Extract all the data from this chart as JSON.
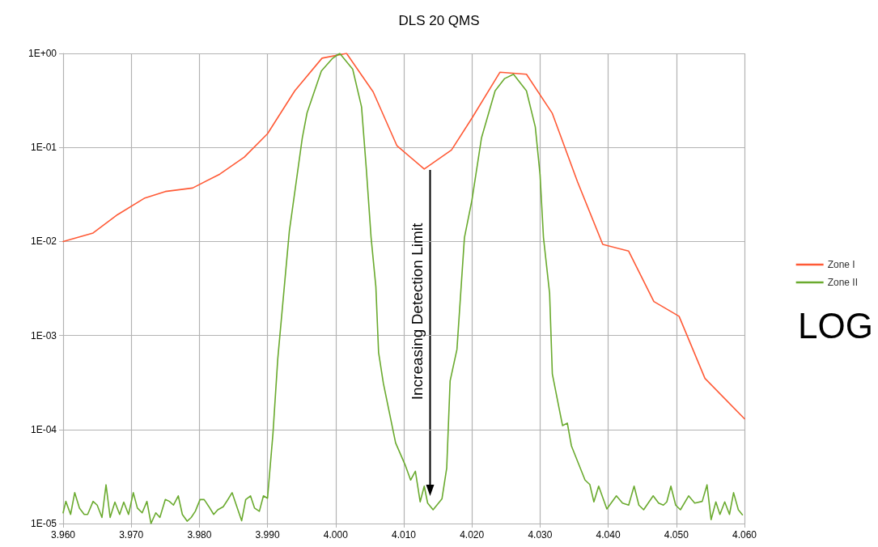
{
  "chart_data": {
    "type": "line",
    "title": "DLS 20 QMS",
    "annotations": [
      "Increasing Detection Limit",
      "LOG"
    ],
    "log": "y",
    "grid": true,
    "legend": "right",
    "marker": "none",
    "line_style": "solid",
    "xlim": [
      3.96,
      4.06
    ],
    "xticks": [
      {
        "value": 3.96,
        "label": "3.960"
      },
      {
        "value": 3.97,
        "label": "3.970"
      },
      {
        "value": 3.98,
        "label": "3.980"
      },
      {
        "value": 3.99,
        "label": "3.990"
      },
      {
        "value": 4.0,
        "label": "4.000"
      },
      {
        "value": 4.01,
        "label": "4.010"
      },
      {
        "value": 4.02,
        "label": "4.020"
      },
      {
        "value": 4.03,
        "label": "4.030"
      },
      {
        "value": 4.04,
        "label": "4.040"
      },
      {
        "value": 4.05,
        "label": "4.050"
      },
      {
        "value": 4.06,
        "label": "4.060"
      }
    ],
    "ylim": [
      1e-05,
      1
    ],
    "yticks": [
      {
        "value": 1e-05,
        "label": "1E-05"
      },
      {
        "value": 0.0001,
        "label": "1E-04"
      },
      {
        "value": 0.001,
        "label": "1E-03"
      },
      {
        "value": 0.01,
        "label": "1E-02"
      },
      {
        "value": 0.1,
        "label": "1E-01"
      },
      {
        "value": 1,
        "label": "1E+00"
      }
    ],
    "series": [
      {
        "name": "Zone I",
        "color": "#ff5a36",
        "x": [
          3.96,
          3.9644,
          3.968,
          3.972,
          3.975,
          3.979,
          3.983,
          3.9866,
          3.99,
          3.994,
          3.998,
          4.0016,
          4.0055,
          4.009,
          4.013,
          4.017,
          4.02,
          4.0241,
          4.028,
          4.0318,
          4.0355,
          4.0392,
          4.043,
          4.0467,
          4.0504,
          4.0542,
          4.06
        ],
        "values": [
          0.01,
          0.0123,
          0.0193,
          0.029,
          0.034,
          0.037,
          0.052,
          0.079,
          0.14,
          0.4,
          0.89,
          1.0,
          0.39,
          0.104,
          0.059,
          0.094,
          0.205,
          0.63,
          0.6,
          0.23,
          0.043,
          0.0093,
          0.0079,
          0.0023,
          0.0016,
          0.00035,
          0.00013
        ]
      },
      {
        "name": "Zone II",
        "color": "#6aaa2e",
        "x": [
          3.96,
          3.9604,
          3.9611,
          3.9617,
          3.9624,
          3.9631,
          3.9636,
          3.9644,
          3.965,
          3.9657,
          3.9663,
          3.9669,
          3.9676,
          3.9683,
          3.9689,
          3.9696,
          3.9703,
          3.9709,
          3.9716,
          3.9723,
          3.9729,
          3.9736,
          3.9742,
          3.975,
          3.9756,
          3.9762,
          3.9769,
          3.9775,
          3.9782,
          3.9788,
          3.9794,
          3.9801,
          3.9807,
          3.9814,
          3.9821,
          3.9827,
          3.9835,
          3.9841,
          3.9848,
          3.9855,
          3.9862,
          3.9868,
          3.9875,
          3.9881,
          3.9888,
          3.9894,
          3.99,
          3.9908,
          3.9915,
          3.9932,
          3.9951,
          3.9958,
          3.9979,
          3.9995,
          4.0006,
          4.0025,
          4.0038,
          4.0045,
          4.0052,
          4.0059,
          4.0063,
          4.007,
          4.0088,
          4.0102,
          4.011,
          4.0117,
          4.0124,
          4.013,
          4.0135,
          4.0143,
          4.0156,
          4.0163,
          4.0168,
          4.0178,
          4.0189,
          4.02,
          4.0214,
          4.0234,
          4.0248,
          4.0261,
          4.028,
          4.0293,
          4.03,
          4.0305,
          4.0314,
          4.0318,
          4.0328,
          4.0333,
          4.034,
          4.0346,
          4.0366,
          4.0373,
          4.0379,
          4.0386,
          4.0398,
          4.0412,
          4.0421,
          4.043,
          4.0438,
          4.0445,
          4.0452,
          4.0466,
          4.0474,
          4.0481,
          4.0486,
          4.0492,
          4.0499,
          4.0506,
          4.0518,
          4.0527,
          4.0538,
          4.0545,
          4.0551,
          4.0558,
          4.0564,
          4.0571,
          4.0578,
          4.0584,
          4.0591,
          4.0597
        ],
        "values": [
          1.3e-05,
          1.72e-05,
          1.25e-05,
          2.13e-05,
          1.46e-05,
          1.25e-05,
          1.25e-05,
          1.72e-05,
          1.57e-05,
          1.16e-05,
          2.58e-05,
          1.16e-05,
          1.69e-05,
          1.25e-05,
          1.69e-05,
          1.25e-05,
          2.13e-05,
          1.46e-05,
          1.3e-05,
          1.72e-05,
          1e-05,
          1.3e-05,
          1.16e-05,
          1.8e-05,
          1.72e-05,
          1.57e-05,
          1.97e-05,
          1.25e-05,
          1.06e-05,
          1.16e-05,
          1.35e-05,
          1.8e-05,
          1.8e-05,
          1.51e-05,
          1.25e-05,
          1.4e-05,
          1.51e-05,
          1.76e-05,
          2.13e-05,
          1.51e-05,
          1.07e-05,
          1.8e-05,
          1.97e-05,
          1.46e-05,
          1.35e-05,
          1.97e-05,
          1.86e-05,
          9.1e-05,
          0.00056,
          0.0128,
          0.126,
          0.233,
          0.65,
          0.88,
          1.0,
          0.68,
          0.27,
          0.059,
          0.011,
          0.0033,
          0.00066,
          0.00031,
          7.2e-05,
          4.2e-05,
          2.9e-05,
          3.6e-05,
          1.7e-05,
          2.5e-05,
          1.65e-05,
          1.4e-05,
          1.83e-05,
          3.9e-05,
          0.00033,
          0.00071,
          0.011,
          0.0275,
          0.126,
          0.4,
          0.54,
          0.6,
          0.4,
          0.165,
          0.051,
          0.011,
          0.0028,
          0.00039,
          0.000167,
          0.00011,
          0.000117,
          6.7e-05,
          2.9e-05,
          2.6e-05,
          1.7e-05,
          2.5e-05,
          1.43e-05,
          1.97e-05,
          1.65e-05,
          1.57e-05,
          2.5e-05,
          1.57e-05,
          1.4e-05,
          1.97e-05,
          1.65e-05,
          1.57e-05,
          1.7e-05,
          2.5e-05,
          1.57e-05,
          1.4e-05,
          1.97e-05,
          1.65e-05,
          1.72e-05,
          2.58e-05,
          1.1e-05,
          1.7e-05,
          1.25e-05,
          1.7e-05,
          1.25e-05,
          2.13e-05,
          1.4e-05,
          1.24e-05
        ]
      }
    ]
  }
}
